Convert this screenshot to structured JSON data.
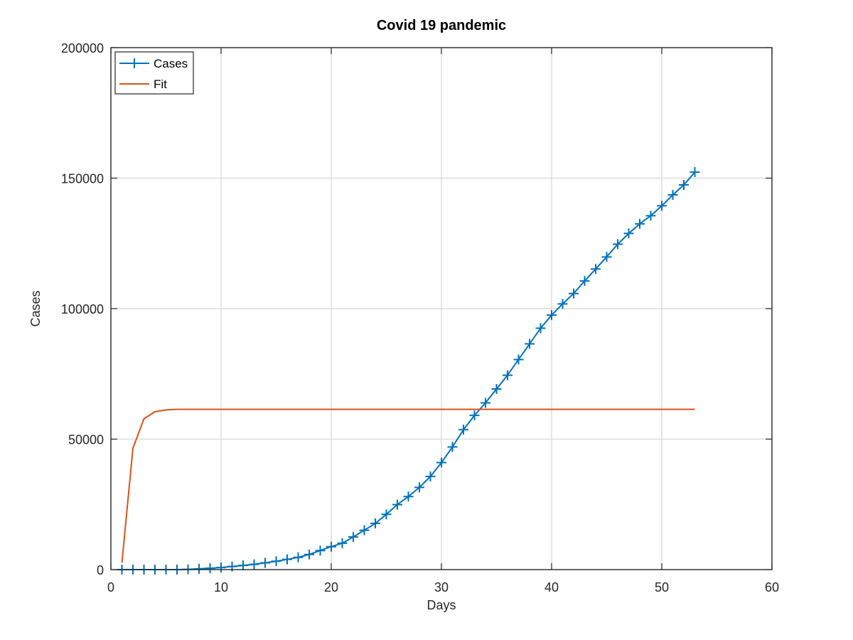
{
  "chart_data": {
    "type": "line",
    "title": "Covid 19 pandemic",
    "xlabel": "Days",
    "ylabel": "Cases",
    "xlim": [
      0,
      60
    ],
    "ylim": [
      0,
      200000
    ],
    "xticks": [
      "0",
      "10",
      "20",
      "30",
      "40",
      "50",
      "60"
    ],
    "yticks": [
      "0",
      "50000",
      "100000",
      "150000",
      "200000"
    ],
    "grid": true,
    "legend_position": "top-left",
    "series": [
      {
        "name": "Cases",
        "color": "#0072bd",
        "marker": "plus",
        "x": [
          1,
          2,
          3,
          4,
          5,
          6,
          7,
          8,
          9,
          10,
          11,
          12,
          13,
          14,
          15,
          16,
          17,
          18,
          19,
          20,
          21,
          22,
          23,
          24,
          25,
          26,
          27,
          28,
          29,
          30,
          31,
          32,
          33,
          34,
          35,
          36,
          37,
          38,
          39,
          40,
          41,
          42,
          43,
          44,
          45,
          46,
          47,
          48,
          49,
          50,
          51,
          52,
          53
        ],
        "y": [
          0,
          0,
          0,
          0,
          0,
          0,
          100,
          300,
          500,
          800,
          1200,
          1600,
          2000,
          2600,
          3200,
          3900,
          4700,
          5800,
          7300,
          8800,
          10100,
          12500,
          15100,
          17700,
          21200,
          24900,
          28000,
          31500,
          35700,
          41000,
          47000,
          53600,
          59100,
          63900,
          69200,
          74500,
          80500,
          86500,
          92500,
          97500,
          101800,
          105800,
          110600,
          115200,
          119800,
          124700,
          128800,
          132500,
          135600,
          139400,
          143600,
          147400,
          152300
        ]
      },
      {
        "name": "Fit",
        "color": "#d95319",
        "marker": "none",
        "x": [
          1,
          2,
          3,
          4,
          5,
          6,
          7,
          8,
          9,
          10,
          11,
          12,
          13,
          14,
          15,
          16,
          17,
          18,
          19,
          20,
          21,
          22,
          23,
          24,
          25,
          26,
          27,
          28,
          29,
          30,
          31,
          32,
          33,
          34,
          35,
          36,
          37,
          38,
          39,
          40,
          41,
          42,
          43,
          44,
          45,
          46,
          47,
          48,
          49,
          50,
          51,
          52,
          53
        ],
        "y": [
          2600,
          46500,
          57800,
          60500,
          61200,
          61400,
          61400,
          61400,
          61400,
          61400,
          61400,
          61400,
          61400,
          61400,
          61400,
          61400,
          61400,
          61400,
          61400,
          61400,
          61400,
          61400,
          61400,
          61400,
          61400,
          61400,
          61400,
          61400,
          61400,
          61400,
          61400,
          61400,
          61400,
          61400,
          61400,
          61400,
          61400,
          61400,
          61400,
          61400,
          61400,
          61400,
          61400,
          61400,
          61400,
          61400,
          61400,
          61400,
          61400,
          61400,
          61400,
          61400,
          61400
        ]
      }
    ]
  }
}
